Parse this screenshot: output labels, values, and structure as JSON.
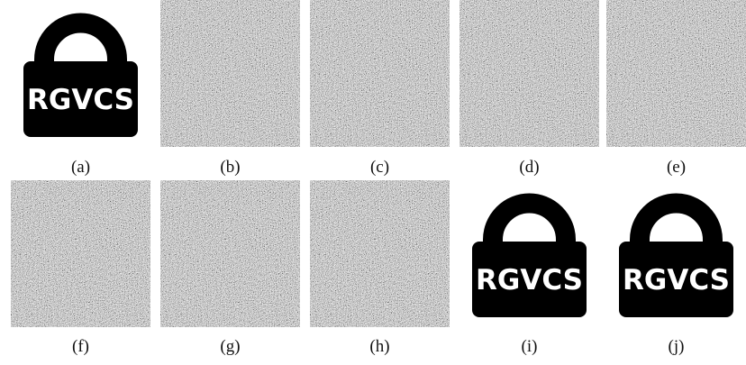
{
  "panels": [
    {
      "label": "(a)",
      "text": "RGVCS"
    },
    {
      "label": "(b)"
    },
    {
      "label": "(c)"
    },
    {
      "label": "(d)"
    },
    {
      "label": "(e)"
    },
    {
      "label": "(f)"
    },
    {
      "label": "(g)"
    },
    {
      "label": "(h)"
    },
    {
      "label": "(i)",
      "text": "RGVCS"
    },
    {
      "label": "(j)",
      "text": "RGVCS"
    }
  ]
}
